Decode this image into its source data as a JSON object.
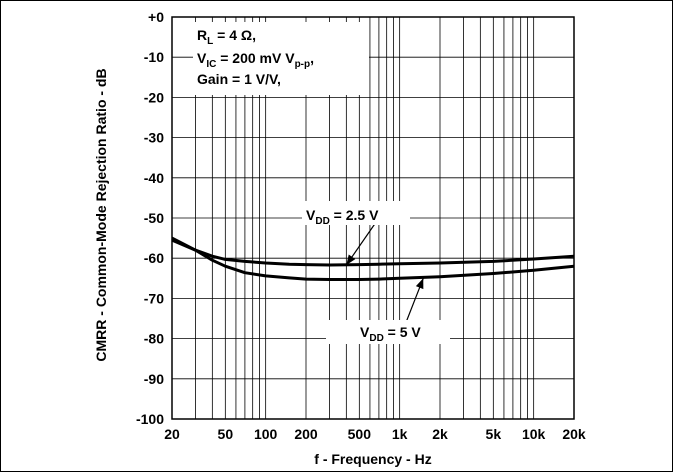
{
  "chart_data": {
    "type": "line",
    "xlabel": "f - Frequency - Hz",
    "ylabel": "CMRR - Common-Mode Rejection Ratio - dB",
    "x_scale": "log",
    "xlim": [
      20,
      20000
    ],
    "ylim": [
      -100,
      0
    ],
    "grid": true,
    "x_ticks": [
      {
        "v": 20,
        "label": "20"
      },
      {
        "v": 50,
        "label": "50"
      },
      {
        "v": 100,
        "label": "100"
      },
      {
        "v": 200,
        "label": "200"
      },
      {
        "v": 500,
        "label": "500"
      },
      {
        "v": 1000,
        "label": "1k"
      },
      {
        "v": 2000,
        "label": "2k"
      },
      {
        "v": 5000,
        "label": "5k"
      },
      {
        "v": 10000,
        "label": "10k"
      },
      {
        "v": 20000,
        "label": "20k"
      }
    ],
    "y_ticks": [
      {
        "v": 0,
        "label": "+0"
      },
      {
        "v": -10,
        "label": "-10"
      },
      {
        "v": -20,
        "label": "-20"
      },
      {
        "v": -30,
        "label": "-30"
      },
      {
        "v": -40,
        "label": "-40"
      },
      {
        "v": -50,
        "label": "-50"
      },
      {
        "v": -60,
        "label": "-60"
      },
      {
        "v": -70,
        "label": "-70"
      },
      {
        "v": -80,
        "label": "-80"
      },
      {
        "v": -90,
        "label": "-90"
      },
      {
        "v": -100,
        "label": "-100"
      }
    ],
    "conditions": {
      "line1": {
        "main": "R",
        "sub": "L",
        "rest": " = 4 Ω,"
      },
      "line2": {
        "main": "V",
        "sub": "IC",
        "rest": " = 200 mV V",
        "sub2": "p-p",
        "rest2": ","
      },
      "line3": "Gain = 1 V/V,"
    },
    "series": [
      {
        "label": {
          "main": "V",
          "sub": "DD",
          "rest": " = 2.5 V"
        },
        "x": [
          20,
          30,
          40,
          50,
          70,
          100,
          150,
          200,
          300,
          500,
          700,
          1000,
          2000,
          5000,
          10000,
          20000
        ],
        "y": [
          -55,
          -58,
          -59.5,
          -60.3,
          -60.8,
          -61.2,
          -61.5,
          -61.6,
          -61.7,
          -61.6,
          -61.5,
          -61.4,
          -61.2,
          -60.8,
          -60.2,
          -59.5
        ]
      },
      {
        "label": {
          "main": "V",
          "sub": "DD",
          "rest": " = 5 V"
        },
        "x": [
          20,
          30,
          40,
          50,
          70,
          100,
          150,
          200,
          300,
          500,
          700,
          1000,
          2000,
          5000,
          10000,
          20000
        ],
        "y": [
          -55.5,
          -58,
          -60.5,
          -62,
          -63.6,
          -64.4,
          -64.9,
          -65.2,
          -65.3,
          -65.3,
          -65.2,
          -65,
          -64.6,
          -63.8,
          -63,
          -62
        ]
      }
    ],
    "annotations": [
      {
        "series": 0,
        "text_at": [
          700,
          -50
        ],
        "arrow_to": [
          400,
          -61.7
        ]
      },
      {
        "series": 1,
        "text_at": [
          1000,
          -80
        ],
        "arrow_to": [
          1500,
          -65
        ]
      }
    ]
  }
}
